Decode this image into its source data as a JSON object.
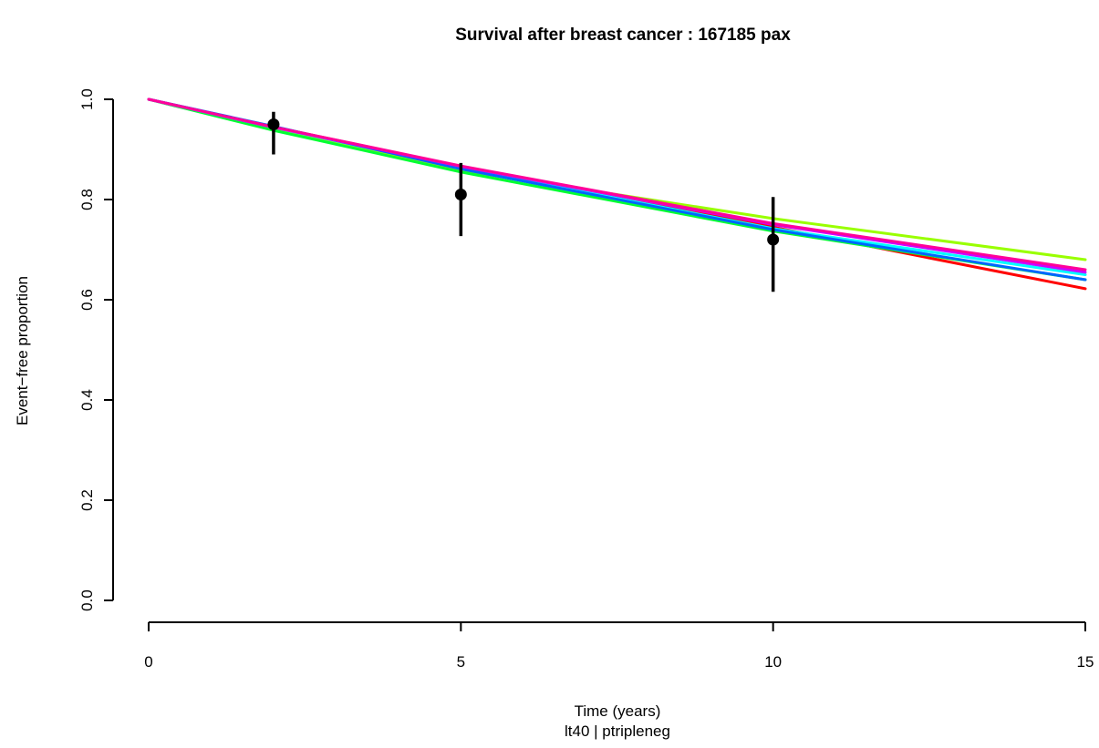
{
  "chart_data": {
    "type": "line",
    "title": "Survival after breast cancer : 167185 pax",
    "xlabel": "Time (years)",
    "xlabel_sub": "lt40 | ptripleneg",
    "ylabel": "Event−free proportion",
    "xlim": [
      0,
      15
    ],
    "ylim": [
      0,
      1
    ],
    "x_ticks": [
      {
        "value": 0,
        "label": "0"
      },
      {
        "value": 5,
        "label": "5"
      },
      {
        "value": 10,
        "label": "10"
      },
      {
        "value": 15,
        "label": "15"
      }
    ],
    "y_ticks": [
      {
        "value": 0.0,
        "label": "0.0"
      },
      {
        "value": 0.2,
        "label": "0.2"
      },
      {
        "value": 0.4,
        "label": "0.4"
      },
      {
        "value": 0.6,
        "label": "0.6"
      },
      {
        "value": 0.8,
        "label": "0.8"
      },
      {
        "value": 1.0,
        "label": "1.0"
      }
    ],
    "grid": false,
    "legend": "none",
    "series": [
      {
        "color": "#ff0000",
        "x": [
          0,
          2,
          5,
          10,
          15
        ],
        "y": [
          1.0,
          0.945,
          0.866,
          0.745,
          0.622
        ]
      },
      {
        "color": "#99ff00",
        "x": [
          0,
          2,
          5,
          10,
          15
        ],
        "y": [
          1.0,
          0.94,
          0.858,
          0.762,
          0.68
        ]
      },
      {
        "color": "#00ff33",
        "x": [
          0,
          2,
          5,
          10,
          15
        ],
        "y": [
          1.0,
          0.938,
          0.855,
          0.737,
          0.64
        ]
      },
      {
        "color": "#00ffff",
        "x": [
          0,
          2,
          5,
          10,
          15
        ],
        "y": [
          1.0,
          0.944,
          0.863,
          0.742,
          0.65
        ]
      },
      {
        "color": "#0066ff",
        "x": [
          0,
          2,
          5,
          10,
          15
        ],
        "y": [
          1.0,
          0.946,
          0.861,
          0.74,
          0.64
        ]
      },
      {
        "color": "#cc00ff",
        "x": [
          0,
          2,
          5,
          10,
          15
        ],
        "y": [
          1.0,
          0.944,
          0.866,
          0.75,
          0.655
        ]
      },
      {
        "color": "#ff0099",
        "x": [
          0,
          2,
          5,
          10,
          15
        ],
        "y": [
          1.0,
          0.945,
          0.867,
          0.752,
          0.66
        ]
      }
    ],
    "observed": [
      {
        "x": 2,
        "y": 0.95,
        "lower": 0.89,
        "upper": 0.975
      },
      {
        "x": 5,
        "y": 0.81,
        "lower": 0.727,
        "upper": 0.873
      },
      {
        "x": 10,
        "y": 0.72,
        "lower": 0.616,
        "upper": 0.805
      }
    ]
  }
}
